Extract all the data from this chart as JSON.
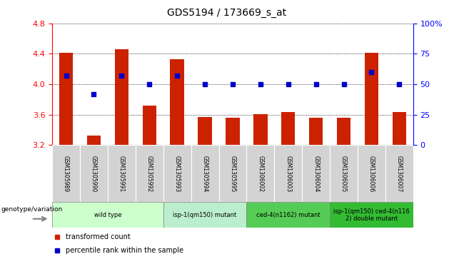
{
  "title": "GDS5194 / 173669_s_at",
  "samples": [
    "GSM1305989",
    "GSM1305990",
    "GSM1305991",
    "GSM1305992",
    "GSM1305993",
    "GSM1305994",
    "GSM1305995",
    "GSM1306002",
    "GSM1306003",
    "GSM1306004",
    "GSM1306005",
    "GSM1306006",
    "GSM1306007"
  ],
  "transformed_count": [
    4.41,
    3.32,
    4.46,
    3.72,
    4.33,
    3.57,
    3.56,
    3.61,
    3.63,
    3.56,
    3.56,
    4.41,
    3.63
  ],
  "percentile_rank": [
    57,
    42,
    57,
    50,
    57,
    50,
    50,
    50,
    50,
    50,
    50,
    60,
    50
  ],
  "ylim_left": [
    3.2,
    4.8
  ],
  "ylim_right": [
    0,
    100
  ],
  "yticks_left": [
    3.2,
    3.6,
    4.0,
    4.4,
    4.8
  ],
  "yticks_right": [
    0,
    25,
    50,
    75,
    100
  ],
  "bar_color": "#cc2200",
  "dot_color": "#0000cc",
  "bar_width": 0.5,
  "group_labels": [
    "wild type",
    "isp-1(qm150) mutant",
    "ced-4(n1162) mutant",
    "isp-1(qm150) ced-4(n116\n2) double mutant"
  ],
  "group_colors": [
    "#ccffcc",
    "#bbeecc",
    "#55cc55",
    "#33bb33"
  ],
  "group_ranges": [
    [
      0,
      4
    ],
    [
      4,
      7
    ],
    [
      7,
      10
    ],
    [
      10,
      13
    ]
  ],
  "genotype_label": "genotype/variation",
  "legend_items": [
    "transformed count",
    "percentile rank within the sample"
  ],
  "legend_colors": [
    "#cc2200",
    "#0000cc"
  ],
  "background_color": "#ffffff",
  "label_area_color": "#d3d3d3",
  "plot_bg_color": "#ffffff"
}
